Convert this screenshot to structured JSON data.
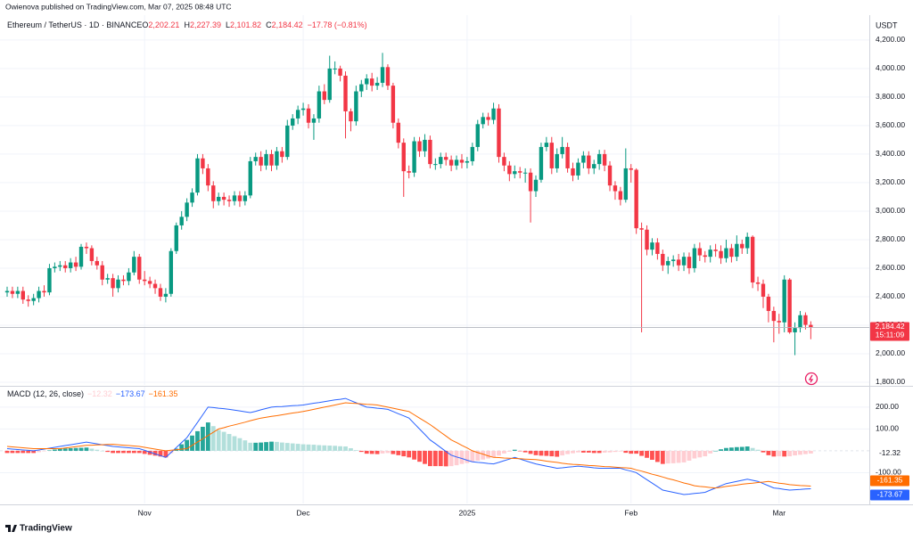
{
  "chart_data": {
    "type": "candlestick",
    "publisher": "Owienova published on TradingView.com, Mar 07, 2025 08:48 UTC",
    "symbol": "Ethereum / TetherUS · 1D · BINANCE",
    "quote": [
      {
        "key": "O",
        "text": "2,202.21"
      },
      {
        "key": "H",
        "text": "2,227.39"
      },
      {
        "key": "L",
        "text": "2,101.82"
      },
      {
        "key": "C",
        "text": "2,184.42"
      }
    ],
    "change": "−17.78 (−0.81%)",
    "currency": "USDT",
    "price_tag": "2,184.42",
    "countdown": "15:11:09",
    "brand": "TradingView",
    "up_color": "#089981",
    "down_color": "#f23645",
    "grid": true,
    "categories": [
      null,
      null,
      null,
      null,
      null,
      null,
      null,
      null,
      null,
      null,
      null,
      null,
      null,
      null,
      null,
      null,
      null,
      null,
      null,
      null,
      null,
      null,
      null,
      null,
      null,
      null,
      "Nov",
      null,
      null,
      null,
      null,
      null,
      null,
      null,
      null,
      null,
      null,
      null,
      null,
      null,
      null,
      null,
      null,
      null,
      null,
      null,
      null,
      null,
      null,
      null,
      null,
      null,
      null,
      null,
      null,
      null,
      "Dec",
      null,
      null,
      null,
      null,
      null,
      null,
      null,
      null,
      null,
      null,
      null,
      null,
      null,
      null,
      null,
      null,
      null,
      null,
      null,
      null,
      null,
      null,
      null,
      null,
      null,
      null,
      null,
      null,
      null,
      null,
      "2025",
      null,
      null,
      null,
      null,
      null,
      null,
      null,
      null,
      null,
      null,
      null,
      null,
      null,
      null,
      null,
      null,
      null,
      null,
      null,
      null,
      null,
      null,
      null,
      null,
      null,
      null,
      null,
      null,
      null,
      null,
      "Feb",
      null,
      null,
      null,
      null,
      null,
      null,
      null,
      null,
      null,
      null,
      null,
      null,
      null,
      null,
      null,
      null,
      null,
      null,
      null,
      null,
      null,
      null,
      null,
      null,
      null,
      null,
      null,
      "Mar",
      null,
      null,
      null,
      null,
      null,
      null
    ],
    "open": [
      2430,
      2440,
      2420,
      2440,
      2380,
      2370,
      2390,
      2440,
      2430,
      2600,
      2610,
      2620,
      2600,
      2640,
      2610,
      2750,
      2740,
      2650,
      2620,
      2520,
      2530,
      2460,
      2520,
      2510,
      2570,
      2680,
      2520,
      2510,
      2490,
      2460,
      2400,
      2420,
      2720,
      2900,
      2960,
      3060,
      3130,
      3370,
      3300,
      3180,
      3070,
      3100,
      3080,
      3070,
      3110,
      3070,
      3110,
      3350,
      3380,
      3320,
      3400,
      3320,
      3420,
      3380,
      3600,
      3650,
      3710,
      3720,
      3620,
      3650,
      3840,
      3780,
      4000,
      4000,
      3950,
      3700,
      3630,
      3840,
      3890,
      3930,
      3880,
      3900,
      4010,
      3880,
      3620,
      3480,
      3280,
      3270,
      3490,
      3420,
      3500,
      3330,
      3330,
      3380,
      3360,
      3320,
      3360,
      3340,
      3350,
      3450,
      3610,
      3660,
      3640,
      3720,
      3380,
      3320,
      3260,
      3280,
      3270,
      3270,
      3140,
      3220,
      3450,
      3480,
      3300,
      3400,
      3450,
      3300,
      3250,
      3340,
      3390,
      3300,
      3330,
      3400,
      3320,
      3180,
      3140,
      3080,
      3300,
      3290,
      2880,
      2870,
      2730,
      2780,
      2700,
      2620,
      2650,
      2660,
      2620,
      2680,
      2600,
      2740,
      2690,
      2680,
      2730,
      2720,
      2670,
      2740,
      2680,
      2770,
      2740,
      2820,
      2500,
      2490,
      2400,
      2300,
      2230,
      2220,
      2520,
      2150,
      2180,
      2270,
      2202.21
    ],
    "high": [
      2470,
      2470,
      2470,
      2470,
      2410,
      2420,
      2470,
      2480,
      2630,
      2640,
      2650,
      2650,
      2670,
      2680,
      2770,
      2780,
      2760,
      2680,
      2650,
      2560,
      2560,
      2550,
      2550,
      2600,
      2720,
      2700,
      2580,
      2540,
      2520,
      2490,
      2460,
      2740,
      2920,
      3000,
      3090,
      3160,
      3400,
      3400,
      3330,
      3210,
      3130,
      3130,
      3110,
      3140,
      3140,
      3140,
      3380,
      3410,
      3420,
      3430,
      3430,
      3450,
      3450,
      3640,
      3680,
      3740,
      3760,
      3750,
      3680,
      3880,
      3890,
      4090,
      4050,
      4020,
      3980,
      3720,
      3880,
      3920,
      3960,
      3970,
      3940,
      4110,
      4030,
      3900,
      3650,
      3510,
      3320,
      3520,
      3520,
      3540,
      3530,
      3370,
      3410,
      3410,
      3390,
      3390,
      3400,
      3380,
      3480,
      3640,
      3690,
      3690,
      3760,
      3750,
      3410,
      3350,
      3320,
      3310,
      3300,
      3300,
      3250,
      3480,
      3520,
      3520,
      3440,
      3520,
      3480,
      3340,
      3370,
      3420,
      3420,
      3360,
      3430,
      3430,
      3350,
      3210,
      3170,
      3440,
      3330,
      3300,
      2920,
      2900,
      2810,
      2810,
      2730,
      2680,
      2690,
      2700,
      2710,
      2710,
      2770,
      2780,
      2720,
      2760,
      2770,
      2760,
      2800,
      2770,
      2830,
      2800,
      2850,
      2830,
      2540,
      2520,
      2420,
      2330,
      2280,
      2550,
      2530,
      2220,
      2300,
      2290,
      2227.39
    ],
    "low": [
      2400,
      2390,
      2390,
      2350,
      2330,
      2340,
      2360,
      2400,
      2410,
      2570,
      2580,
      2570,
      2570,
      2580,
      2590,
      2700,
      2620,
      2590,
      2480,
      2490,
      2400,
      2430,
      2480,
      2480,
      2550,
      2490,
      2480,
      2460,
      2420,
      2370,
      2360,
      2400,
      2700,
      2870,
      2930,
      3030,
      3110,
      3260,
      3140,
      3020,
      3040,
      3040,
      3030,
      3040,
      3030,
      3040,
      3090,
      3320,
      3280,
      3290,
      3280,
      3290,
      3340,
      3360,
      3570,
      3610,
      3670,
      3580,
      3500,
      3620,
      3750,
      3760,
      3960,
      3910,
      3510,
      3560,
      3600,
      3800,
      3850,
      3840,
      3850,
      3870,
      3850,
      3580,
      3440,
      3100,
      3230,
      3240,
      3380,
      3380,
      3300,
      3290,
      3300,
      3320,
      3280,
      3290,
      3300,
      3300,
      3320,
      3420,
      3580,
      3600,
      3610,
      3340,
      3280,
      3210,
      3230,
      3230,
      3200,
      2920,
      3100,
      3200,
      3420,
      3260,
      3270,
      3370,
      3270,
      3210,
      3220,
      3300,
      3260,
      3260,
      3290,
      3280,
      3140,
      3080,
      3040,
      3060,
      3200,
      2840,
      2150,
      2690,
      2690,
      2660,
      2580,
      2560,
      2610,
      2580,
      2580,
      2560,
      2570,
      2650,
      2640,
      2640,
      2680,
      2630,
      2640,
      2640,
      2650,
      2700,
      2700,
      2460,
      2440,
      2320,
      2220,
      2080,
      2140,
      2150,
      2140,
      1990,
      2150,
      2170,
      2101.82
    ],
    "close": [
      2440,
      2420,
      2440,
      2380,
      2370,
      2390,
      2440,
      2430,
      2600,
      2610,
      2620,
      2600,
      2640,
      2610,
      2750,
      2740,
      2650,
      2620,
      2520,
      2530,
      2460,
      2520,
      2510,
      2570,
      2680,
      2520,
      2510,
      2490,
      2460,
      2400,
      2420,
      2720,
      2900,
      2960,
      3060,
      3130,
      3370,
      3300,
      3180,
      3070,
      3100,
      3080,
      3070,
      3110,
      3070,
      3110,
      3350,
      3380,
      3320,
      3400,
      3320,
      3420,
      3380,
      3600,
      3650,
      3710,
      3720,
      3620,
      3650,
      3840,
      3780,
      4000,
      4000,
      3950,
      3700,
      3630,
      3840,
      3890,
      3930,
      3880,
      3900,
      4010,
      3880,
      3620,
      3480,
      3280,
      3270,
      3490,
      3420,
      3500,
      3330,
      3330,
      3380,
      3360,
      3320,
      3360,
      3340,
      3350,
      3450,
      3610,
      3660,
      3640,
      3720,
      3380,
      3320,
      3260,
      3280,
      3270,
      3270,
      3140,
      3220,
      3450,
      3480,
      3300,
      3400,
      3450,
      3300,
      3250,
      3340,
      3390,
      3300,
      3330,
      3400,
      3320,
      3180,
      3140,
      3080,
      3300,
      3290,
      2880,
      2870,
      2730,
      2780,
      2700,
      2620,
      2650,
      2660,
      2620,
      2680,
      2600,
      2740,
      2690,
      2680,
      2730,
      2720,
      2670,
      2740,
      2680,
      2770,
      2740,
      2820,
      2500,
      2490,
      2400,
      2300,
      2230,
      2220,
      2520,
      2150,
      2180,
      2270,
      2202.21,
      2184.42
    ],
    "ylim": [
      1781,
      4262
    ],
    "yticks": [
      {
        "value": 4200,
        "label": "4,200.00"
      },
      {
        "value": 4000,
        "label": "4,000.00"
      },
      {
        "value": 3800,
        "label": "3,800.00"
      },
      {
        "value": 3600,
        "label": "3,600.00"
      },
      {
        "value": 3400,
        "label": "3,400.00"
      },
      {
        "value": 3200,
        "label": "3,200.00"
      },
      {
        "value": 3000,
        "label": "3,000.00"
      },
      {
        "value": 2800,
        "label": "2,800.00"
      },
      {
        "value": 2600,
        "label": "2,600.00"
      },
      {
        "value": 2400,
        "label": "2,400.00"
      },
      {
        "value": 2200,
        "label": "2,200.00"
      },
      {
        "value": 2000,
        "label": "2,000.00"
      },
      {
        "value": 1800,
        "label": "1,800.00"
      }
    ],
    "indicator": {
      "label": "MACD (12, 26, close)",
      "legend_values": [
        "−12.32",
        "−173.67",
        "−161.35"
      ],
      "ylim": [
        -241,
        269
      ],
      "yticks": [
        {
          "value": 200,
          "label": "200.00"
        },
        {
          "value": 100,
          "label": "100.00"
        },
        {
          "value": -100,
          "label": "-100.00"
        }
      ],
      "histogram_colors": [
        "#26a69a",
        "#b2dfdb",
        "#ff5252",
        "#ffcdd2"
      ],
      "histogram": {
        "tag": "-12.32",
        "values": [
          -10,
          -10,
          -10,
          -10,
          -10,
          -10,
          -6,
          -2,
          2,
          6,
          10,
          11,
          12,
          13,
          14,
          15,
          10,
          5,
          0,
          -5,
          -10,
          -10,
          -10,
          -10,
          -10,
          -10,
          -14,
          -18,
          -22,
          -26,
          -30,
          -11,
          10,
          30,
          50,
          70,
          90,
          110,
          130,
          113,
          95,
          87,
          77,
          67,
          58,
          48,
          37,
          37,
          38,
          40,
          42,
          41,
          38,
          36,
          34,
          32,
          30,
          29,
          28,
          26,
          25,
          24,
          23,
          21,
          20,
          12,
          3,
          -5,
          -13,
          -14,
          -15,
          -12,
          -10,
          -15,
          -20,
          -25,
          -30,
          -40,
          -50,
          -60,
          -70,
          -70,
          -70,
          -71,
          -70,
          -66,
          -60,
          -56,
          -50,
          -45,
          -40,
          -35,
          -30,
          -22,
          -12,
          -4,
          5,
          -2,
          -7,
          -14,
          -20,
          -22,
          -23,
          -25,
          -27,
          -21,
          -15,
          -11,
          -7,
          -8,
          -8,
          -10,
          -10,
          -8,
          -7,
          -5,
          -3,
          -9,
          -13,
          -13,
          -23,
          -32,
          -41,
          -51,
          -60,
          -58,
          -57,
          -55,
          -53,
          -45,
          -35,
          -30,
          -25,
          -12,
          0,
          7,
          13,
          15,
          17,
          18,
          20,
          13,
          5,
          -7,
          -20,
          -26,
          -25,
          -26,
          -25,
          -21,
          -18,
          -15,
          -12.32
        ]
      },
      "macd": {
        "color": "#2962ff",
        "tag": "-173.67",
        "values": [
          10,
          8,
          6,
          4,
          2,
          0,
          4,
          8,
          12,
          16,
          20,
          24,
          28,
          32,
          36,
          40,
          36,
          32,
          28,
          24,
          20,
          18,
          16,
          14,
          12,
          10,
          2,
          -6,
          -14,
          -22,
          -30,
          -8,
          15,
          38,
          60,
          95,
          130,
          165,
          200,
          198,
          195,
          193,
          190,
          186,
          183,
          179,
          175,
          181,
          188,
          194,
          200,
          202,
          203,
          205,
          207,
          208,
          210,
          214,
          218,
          221,
          225,
          229,
          233,
          236,
          240,
          230,
          220,
          210,
          200,
          198,
          195,
          193,
          190,
          180,
          170,
          160,
          150,
          125,
          100,
          75,
          50,
          33,
          15,
          -3,
          -20,
          -28,
          -35,
          -43,
          -50,
          -53,
          -55,
          -58,
          -60,
          -53,
          -45,
          -38,
          -30,
          -38,
          -45,
          -53,
          -60,
          -65,
          -70,
          -75,
          -80,
          -78,
          -75,
          -73,
          -70,
          -73,
          -75,
          -78,
          -80,
          -80,
          -80,
          -80,
          -80,
          -87,
          -93,
          -100,
          -116,
          -132,
          -148,
          -164,
          -180,
          -185,
          -190,
          -195,
          -200,
          -198,
          -195,
          -193,
          -190,
          -180,
          -170,
          -160,
          -150,
          -145,
          -140,
          -135,
          -130,
          -135,
          -140,
          -150,
          -160,
          -170,
          -173,
          -177,
          -180,
          -178,
          -177,
          -175,
          -173.67
        ]
      },
      "signal": {
        "color": "#ff6d00",
        "tag": "-161.35",
        "values": [
          20,
          18,
          16,
          14,
          12,
          10,
          10,
          10,
          10,
          10,
          10,
          13,
          16,
          19,
          22,
          25,
          26,
          27,
          28,
          29,
          30,
          28,
          26,
          24,
          22,
          20,
          16,
          12,
          8,
          4,
          0,
          3,
          5,
          8,
          10,
          25,
          40,
          55,
          70,
          85,
          100,
          106,
          113,
          119,
          125,
          131,
          138,
          144,
          150,
          154,
          158,
          161,
          165,
          169,
          173,
          176,
          180,
          185,
          190,
          195,
          200,
          205,
          210,
          215,
          220,
          218,
          217,
          215,
          213,
          212,
          210,
          205,
          200,
          195,
          190,
          185,
          180,
          165,
          150,
          135,
          120,
          103,
          85,
          68,
          50,
          38,
          25,
          13,
          0,
          -8,
          -15,
          -23,
          -30,
          -31,
          -33,
          -34,
          -35,
          -36,
          -38,
          -39,
          -40,
          -43,
          -47,
          -50,
          -53,
          -57,
          -60,
          -62,
          -63,
          -65,
          -67,
          -68,
          -70,
          -72,
          -73,
          -75,
          -77,
          -78,
          -80,
          -87,
          -93,
          -100,
          -107,
          -113,
          -120,
          -127,
          -133,
          -140,
          -147,
          -153,
          -160,
          -163,
          -165,
          -168,
          -170,
          -167,
          -163,
          -160,
          -157,
          -153,
          -150,
          -148,
          -145,
          -143,
          -140,
          -144,
          -148,
          -151,
          -155,
          -157,
          -159,
          -160,
          -161.35
        ]
      }
    }
  }
}
